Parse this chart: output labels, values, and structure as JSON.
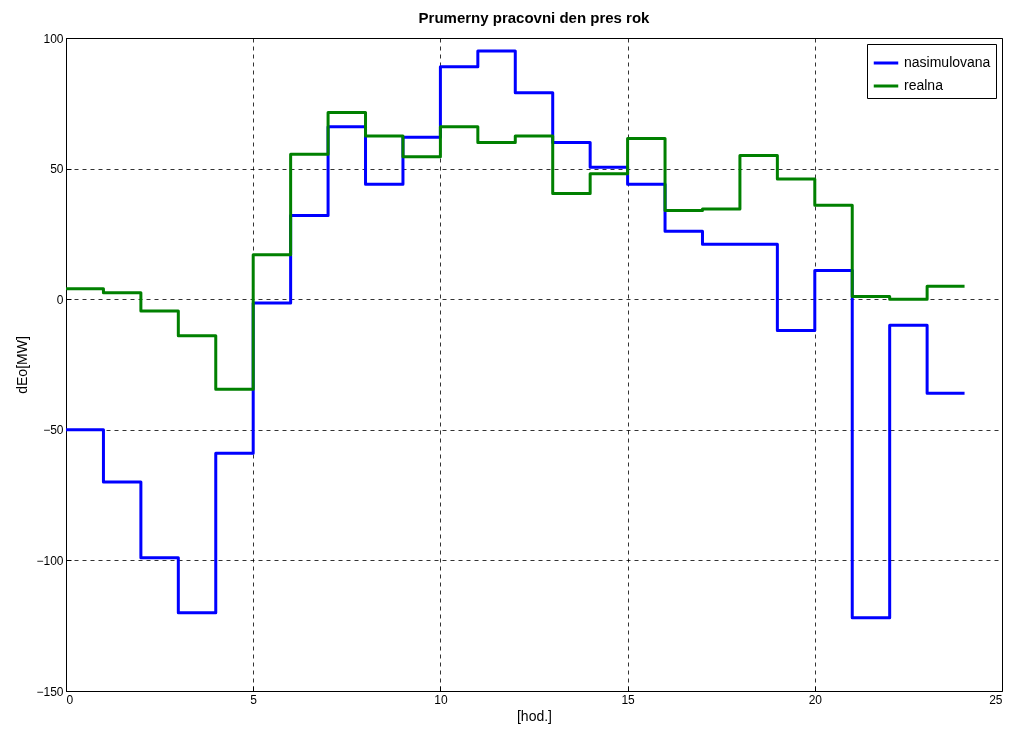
{
  "chart_data": {
    "type": "step",
    "title": "Prumerny pracovni den pres rok",
    "xlabel": "[hod.]",
    "ylabel": "dEo[MW]",
    "x": [
      0,
      1,
      2,
      3,
      4,
      5,
      6,
      7,
      8,
      9,
      10,
      11,
      12,
      13,
      14,
      15,
      16,
      17,
      18,
      19,
      20,
      21,
      22,
      23,
      24
    ],
    "series": [
      {
        "name": "nasimulovana",
        "color": "#0000ff",
        "values": [
          -50,
          -70,
          -99,
          -120,
          -59,
          -1.5,
          32,
          66,
          44,
          62,
          89,
          95,
          79,
          60,
          50.5,
          44,
          26,
          21,
          21,
          -12,
          11,
          -122,
          -10,
          -36,
          -36
        ]
      },
      {
        "name": "realna",
        "color": "#008000",
        "values": [
          4,
          2.5,
          -4.5,
          -14,
          -34.5,
          17,
          55.5,
          71.5,
          62.5,
          54.5,
          66,
          60,
          62.5,
          40.5,
          48,
          61.5,
          34,
          34.5,
          55,
          46,
          36,
          1,
          0,
          5,
          5
        ]
      }
    ],
    "xlim": [
      0,
      25
    ],
    "xticks": [
      0,
      5,
      10,
      15,
      20,
      25
    ],
    "ylim": [
      -150,
      100
    ],
    "yticks": [
      -150,
      -100,
      -50,
      0,
      50,
      100
    ],
    "grid": true,
    "legend": "top right",
    "line_style": "solid"
  }
}
